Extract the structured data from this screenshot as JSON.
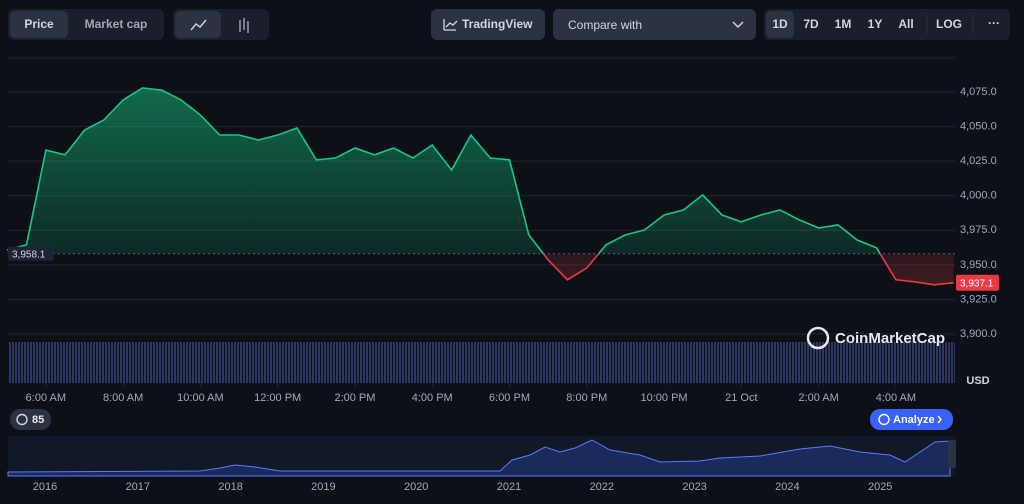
{
  "toolbar": {
    "view_tabs": [
      "Price",
      "Market cap"
    ],
    "tradingview": "TradingView",
    "compare": "Compare with",
    "ranges": [
      "1D",
      "7D",
      "1M",
      "1Y",
      "All"
    ],
    "log": "LOG"
  },
  "chart_data": {
    "type": "area",
    "x": [
      5.0,
      5.5,
      6.0,
      6.5,
      7.0,
      7.5,
      8.0,
      8.5,
      9.0,
      9.5,
      10.0,
      10.5,
      11.0,
      11.5,
      12.0,
      12.5,
      13.0,
      13.5,
      14.0,
      14.5,
      15.0,
      15.5,
      16.0,
      16.5,
      17.0,
      17.5,
      18.0,
      18.5,
      19.0,
      19.5,
      20.0,
      20.5,
      21.0,
      21.5,
      22.0,
      22.5,
      23.0,
      23.5,
      24.0,
      24.5,
      25.0,
      25.5,
      26.0,
      26.5,
      27.0,
      27.5,
      28.0,
      28.5,
      29.0,
      29.5
    ],
    "values": [
      3960.8,
      3964.5,
      4033,
      4029.5,
      4047.5,
      4054.8,
      4069.2,
      4077.9,
      4076.4,
      4069.2,
      4058.4,
      4043.9,
      4043.9,
      4040.3,
      4043.9,
      4049,
      4025.9,
      4027.3,
      4034.5,
      4029.5,
      4034.5,
      4027.3,
      4036.7,
      4018.6,
      4043.9,
      4027.3,
      4025.9,
      3971.7,
      3953.6,
      3939.2,
      3947.8,
      3964.5,
      3971.7,
      3975.3,
      3986.1,
      3989.7,
      4000.6,
      3986.1,
      3981.1,
      3986.1,
      3989.7,
      3982.5,
      3976.7,
      3978.9,
      3968,
      3962.3,
      3939.2,
      3937.7,
      3935.6,
      3937.1
    ],
    "color": "#16c784",
    "down_color": "#ea3943",
    "open_price": {
      "value": 3958.1,
      "label": "3,958.1"
    },
    "last_price": {
      "value": 3937.1,
      "label": "3,937.1"
    },
    "xlim": [
      5.02,
      29.53
    ],
    "xticks": [
      {
        "value": 6,
        "label": "6:00 AM"
      },
      {
        "value": 8,
        "label": "8:00 AM"
      },
      {
        "value": 10,
        "label": "10:00 AM"
      },
      {
        "value": 12,
        "label": "12:00 PM"
      },
      {
        "value": 14,
        "label": "2:00 PM"
      },
      {
        "value": 16,
        "label": "4:00 PM"
      },
      {
        "value": 18,
        "label": "6:00 PM"
      },
      {
        "value": 20,
        "label": "8:00 PM"
      },
      {
        "value": 22,
        "label": "10:00 PM"
      },
      {
        "value": 24,
        "label": "21 Oct"
      },
      {
        "value": 26,
        "label": "2:00 AM"
      },
      {
        "value": 28,
        "label": "4:00 AM"
      }
    ],
    "ylim": [
      3864.6,
      4099.6
    ],
    "yticks": [
      {
        "value": 3900,
        "label": "3,900.0"
      },
      {
        "value": 3925,
        "label": "3,925.0"
      },
      {
        "value": 3950,
        "label": "3,950.0"
      },
      {
        "value": 3975,
        "label": "3,975.0"
      },
      {
        "value": 4000,
        "label": "4,000.0"
      },
      {
        "value": 4025,
        "label": "4,025.0"
      },
      {
        "value": 4050,
        "label": "4,050.0"
      },
      {
        "value": 4075,
        "label": "4,075.0"
      }
    ],
    "y_unit": "USD",
    "grid": true,
    "watermark": "CoinMarketCap"
  },
  "badges": {
    "count": "85",
    "analyze": "Analyze"
  },
  "navigator": {
    "years": [
      "2016",
      "2017",
      "2018",
      "2019",
      "2020",
      "2021",
      "2022",
      "2023",
      "2024",
      "2025"
    ]
  }
}
